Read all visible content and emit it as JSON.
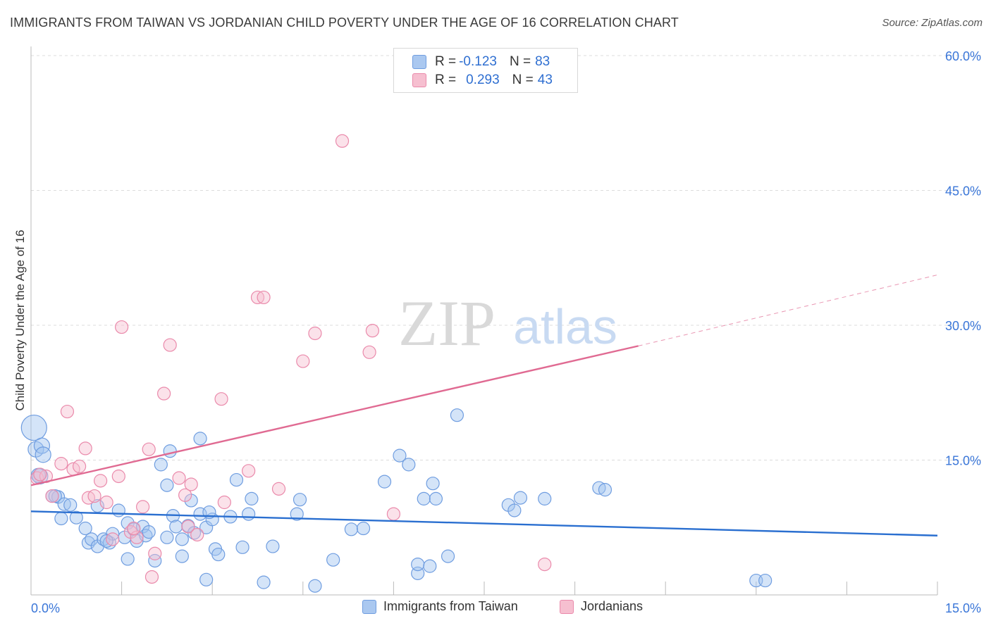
{
  "title": "IMMIGRANTS FROM TAIWAN VS JORDANIAN CHILD POVERTY UNDER THE AGE OF 16 CORRELATION CHART",
  "source": "Source: ZipAtlas.com",
  "watermark": {
    "zip": "ZIP",
    "atlas": "atlas"
  },
  "legend": {
    "r_label": "R =",
    "n_label": "N =",
    "rows": [
      {
        "r": "-0.123",
        "n": "83",
        "color": "#aac8f0",
        "border": "#6f9de0"
      },
      {
        "r": "0.293",
        "n": "43",
        "color": "#f6bfd0",
        "border": "#ea8aab"
      }
    ]
  },
  "bottom_legend": [
    "Immigrants from Taiwan",
    "Jordanians"
  ],
  "chart_data": {
    "type": "scatter",
    "ylabel": "Child Poverty Under the Age of 16",
    "xlim": [
      0,
      15
    ],
    "ylim": [
      0,
      60
    ],
    "x_tick_labels": [
      "0.0%",
      "15.0%"
    ],
    "y_ticks": [
      15,
      30,
      45,
      60
    ],
    "y_tick_labels": [
      "15.0%",
      "30.0%",
      "45.0%",
      "60.0%"
    ],
    "grid": true,
    "series": [
      {
        "name": "Immigrants from Taiwan",
        "color": "#6f9de0",
        "fill": "rgba(160,195,240,0.45)",
        "trend": {
          "x": [
            0,
            15
          ],
          "y": [
            9.3,
            6.6
          ],
          "color": "#2a6fd0"
        },
        "points": [
          [
            0.05,
            18.6,
            18
          ],
          [
            0.08,
            16.2,
            11
          ],
          [
            0.18,
            16.6,
            11
          ],
          [
            0.2,
            15.6,
            11
          ],
          [
            0.15,
            13.2,
            11
          ],
          [
            0.35,
            11.0,
            9
          ],
          [
            0.45,
            10.9,
            9
          ],
          [
            0.4,
            11.0,
            9
          ],
          [
            0.55,
            10.1,
            9
          ],
          [
            0.65,
            10.0,
            9
          ],
          [
            0.75,
            8.6,
            9
          ],
          [
            0.9,
            7.4,
            9
          ],
          [
            0.95,
            5.8,
            9
          ],
          [
            1.0,
            6.2,
            9
          ],
          [
            1.1,
            5.4,
            9
          ],
          [
            1.2,
            6.2,
            9
          ],
          [
            1.3,
            5.8,
            9
          ],
          [
            1.35,
            6.8,
            9
          ],
          [
            1.1,
            9.9,
            9
          ],
          [
            1.45,
            9.4,
            9
          ],
          [
            1.55,
            6.4,
            9
          ],
          [
            1.6,
            8.0,
            9
          ],
          [
            1.7,
            7.3,
            9
          ],
          [
            1.75,
            6.0,
            9
          ],
          [
            1.85,
            7.6,
            9
          ],
          [
            1.9,
            6.6,
            9
          ],
          [
            1.95,
            7.0,
            9
          ],
          [
            2.05,
            3.8,
            9
          ],
          [
            1.6,
            4.0,
            9
          ],
          [
            2.15,
            14.5,
            9
          ],
          [
            2.25,
            6.4,
            9
          ],
          [
            2.25,
            12.2,
            9
          ],
          [
            2.3,
            16.0,
            9
          ],
          [
            2.35,
            8.8,
            9
          ],
          [
            2.4,
            7.6,
            9
          ],
          [
            2.5,
            6.2,
            9
          ],
          [
            2.5,
            4.3,
            9
          ],
          [
            2.6,
            7.7,
            9
          ],
          [
            2.65,
            10.5,
            9
          ],
          [
            2.7,
            6.9,
            9
          ],
          [
            2.8,
            9.0,
            9
          ],
          [
            2.8,
            17.4,
            9
          ],
          [
            2.9,
            7.5,
            9
          ],
          [
            2.9,
            1.7,
            9
          ],
          [
            3.0,
            8.4,
            9
          ],
          [
            3.05,
            5.1,
            9
          ],
          [
            3.1,
            4.5,
            9
          ],
          [
            3.3,
            8.7,
            9
          ],
          [
            3.4,
            12.8,
            9
          ],
          [
            3.5,
            5.3,
            9
          ],
          [
            3.6,
            9.0,
            9
          ],
          [
            3.65,
            10.7,
            9
          ],
          [
            3.85,
            1.4,
            9
          ],
          [
            4.0,
            5.4,
            9
          ],
          [
            4.4,
            9.0,
            9
          ],
          [
            4.45,
            10.6,
            9
          ],
          [
            4.7,
            1.0,
            9
          ],
          [
            5.0,
            3.9,
            9
          ],
          [
            5.3,
            7.3,
            9
          ],
          [
            5.85,
            12.6,
            9
          ],
          [
            6.1,
            15.5,
            9
          ],
          [
            6.25,
            14.5,
            9
          ],
          [
            6.4,
            2.4,
            9
          ],
          [
            6.4,
            3.4,
            9
          ],
          [
            6.5,
            10.7,
            9
          ],
          [
            6.6,
            3.2,
            9
          ],
          [
            6.65,
            12.4,
            9
          ],
          [
            6.7,
            10.7,
            9
          ],
          [
            6.9,
            4.3,
            9
          ],
          [
            7.05,
            20.0,
            9
          ],
          [
            7.9,
            10.0,
            9
          ],
          [
            8.0,
            9.4,
            9
          ],
          [
            8.1,
            10.8,
            9
          ],
          [
            8.5,
            10.7,
            9
          ],
          [
            9.4,
            11.9,
            9
          ],
          [
            9.5,
            11.7,
            9
          ],
          [
            12.0,
            1.6,
            9
          ],
          [
            12.15,
            1.6,
            9
          ],
          [
            0.12,
            13.3,
            10
          ],
          [
            0.5,
            8.5,
            9
          ],
          [
            1.25,
            6.0,
            9
          ],
          [
            2.95,
            9.2,
            9
          ],
          [
            5.5,
            7.4,
            9
          ]
        ]
      },
      {
        "name": "Jordanians",
        "color": "#ea8aab",
        "fill": "rgba(246,190,208,0.45)",
        "trend": {
          "x": [
            0,
            10.05
          ],
          "y": [
            12.2,
            27.7
          ],
          "dash_x": [
            10.05,
            15
          ],
          "dash_y": [
            27.7,
            35.6
          ],
          "color": "#e06a92"
        },
        "points": [
          [
            0.1,
            13.0,
            9
          ],
          [
            0.25,
            13.2,
            9
          ],
          [
            0.35,
            11.0,
            9
          ],
          [
            0.5,
            14.6,
            9
          ],
          [
            0.6,
            20.4,
            9
          ],
          [
            0.7,
            14.0,
            9
          ],
          [
            0.8,
            14.3,
            9
          ],
          [
            0.9,
            16.3,
            9
          ],
          [
            0.95,
            10.8,
            9
          ],
          [
            1.05,
            11.0,
            9
          ],
          [
            1.15,
            12.7,
            9
          ],
          [
            1.25,
            10.3,
            9
          ],
          [
            1.35,
            6.2,
            9
          ],
          [
            1.45,
            13.2,
            9
          ],
          [
            1.5,
            29.8,
            9
          ],
          [
            1.65,
            7.0,
            9
          ],
          [
            1.75,
            6.4,
            9
          ],
          [
            1.85,
            9.8,
            9
          ],
          [
            1.95,
            16.2,
            9
          ],
          [
            2.0,
            2.0,
            9
          ],
          [
            2.05,
            4.6,
            9
          ],
          [
            2.2,
            22.4,
            9
          ],
          [
            2.3,
            27.8,
            9
          ],
          [
            2.45,
            13.0,
            9
          ],
          [
            2.55,
            11.1,
            9
          ],
          [
            2.6,
            7.6,
            9
          ],
          [
            2.65,
            12.3,
            9
          ],
          [
            2.75,
            6.7,
            9
          ],
          [
            3.15,
            21.8,
            9
          ],
          [
            3.2,
            10.3,
            9
          ],
          [
            3.6,
            13.8,
            9
          ],
          [
            3.75,
            33.1,
            9
          ],
          [
            3.85,
            33.1,
            9
          ],
          [
            4.1,
            11.8,
            9
          ],
          [
            4.5,
            26.0,
            9
          ],
          [
            4.7,
            29.1,
            9
          ],
          [
            5.15,
            50.5,
            9
          ],
          [
            5.6,
            27.0,
            9
          ],
          [
            5.65,
            29.4,
            9
          ],
          [
            6.0,
            9.0,
            9
          ],
          [
            8.5,
            3.4,
            9
          ],
          [
            0.15,
            13.4,
            9
          ],
          [
            1.7,
            7.4,
            9
          ]
        ]
      }
    ]
  }
}
